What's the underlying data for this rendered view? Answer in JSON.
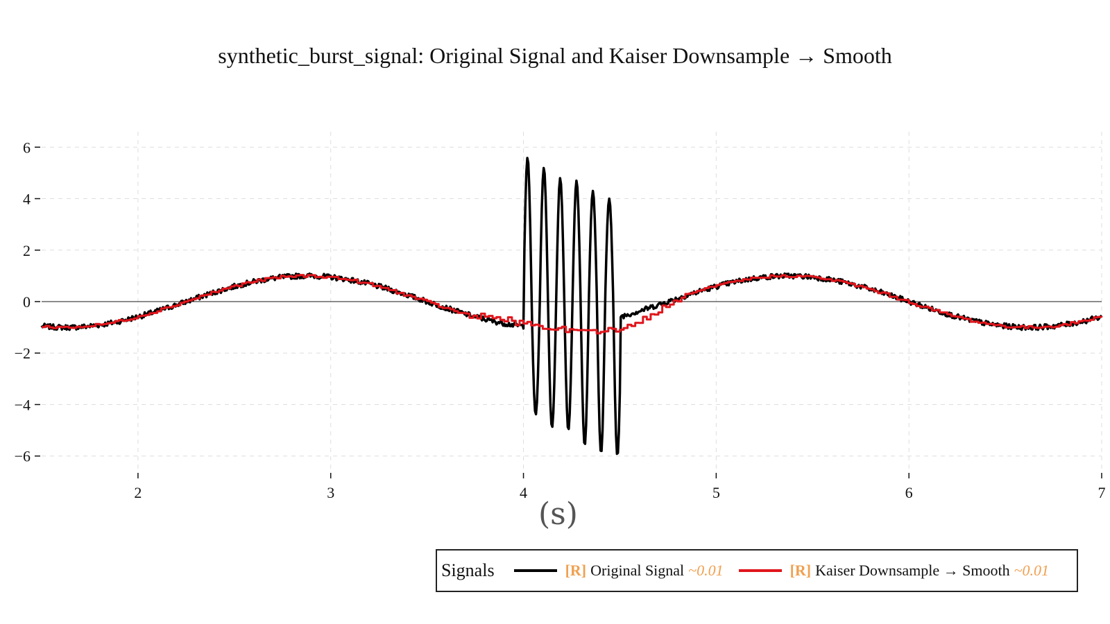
{
  "chart_data": {
    "type": "line",
    "title": "synthetic_burst_signal: Original Signal and Kaiser Downsample → Smooth",
    "xlabel": "(s)",
    "ylabel": "",
    "xlim": [
      1.5,
      7.0
    ],
    "ylim": [
      -6.6,
      6.6
    ],
    "x_ticks": [
      2,
      3,
      4,
      5,
      6,
      7
    ],
    "y_ticks": [
      6,
      4,
      2,
      0,
      -2,
      -4,
      -6
    ],
    "y_tick_labels": [
      "6",
      "4",
      "2",
      "0",
      "−2",
      "−4",
      "−6"
    ],
    "grid": true,
    "legend_placement": "bottom-right",
    "legend_title": "Signals",
    "series": [
      {
        "name": "Original Signal",
        "tag": "[R]",
        "value_label": "~0.01",
        "color": "#000000",
        "generator": {
          "base": "sin(2*pi*0.4*t + pi/5)",
          "noise_amp": 0.1,
          "burst": {
            "start": 4.0,
            "end": 4.5,
            "frequency_hz": 11.8,
            "amplitude": 5.2,
            "peaks": [
              5.6,
              5.2,
              4.8,
              4.7,
              4.3,
              4.0
            ],
            "troughs": [
              -4.4,
              -4.9,
              -5.0,
              -5.6,
              -5.9,
              -6.0
            ]
          }
        }
      },
      {
        "name": "Kaiser Downsample → Smooth",
        "tag": "[R]",
        "value_label": "~0.01",
        "color": "#e0161c",
        "generator": {
          "base": "sin(2*pi*0.4*t + pi/5)",
          "step": "stair",
          "noise_amp": 0.05,
          "burst_region_offsets": [
            {
              "t": 3.75,
              "dy": 0.1
            },
            {
              "t": 3.9,
              "dy": 0.15
            },
            {
              "t": 4.05,
              "dy": 0.1
            },
            {
              "t": 4.2,
              "dy": -0.1
            },
            {
              "t": 4.35,
              "dy": -0.35
            },
            {
              "t": 4.5,
              "dy": -0.5
            },
            {
              "t": 4.65,
              "dy": -0.35
            },
            {
              "t": 4.8,
              "dy": -0.1
            }
          ]
        }
      }
    ]
  }
}
